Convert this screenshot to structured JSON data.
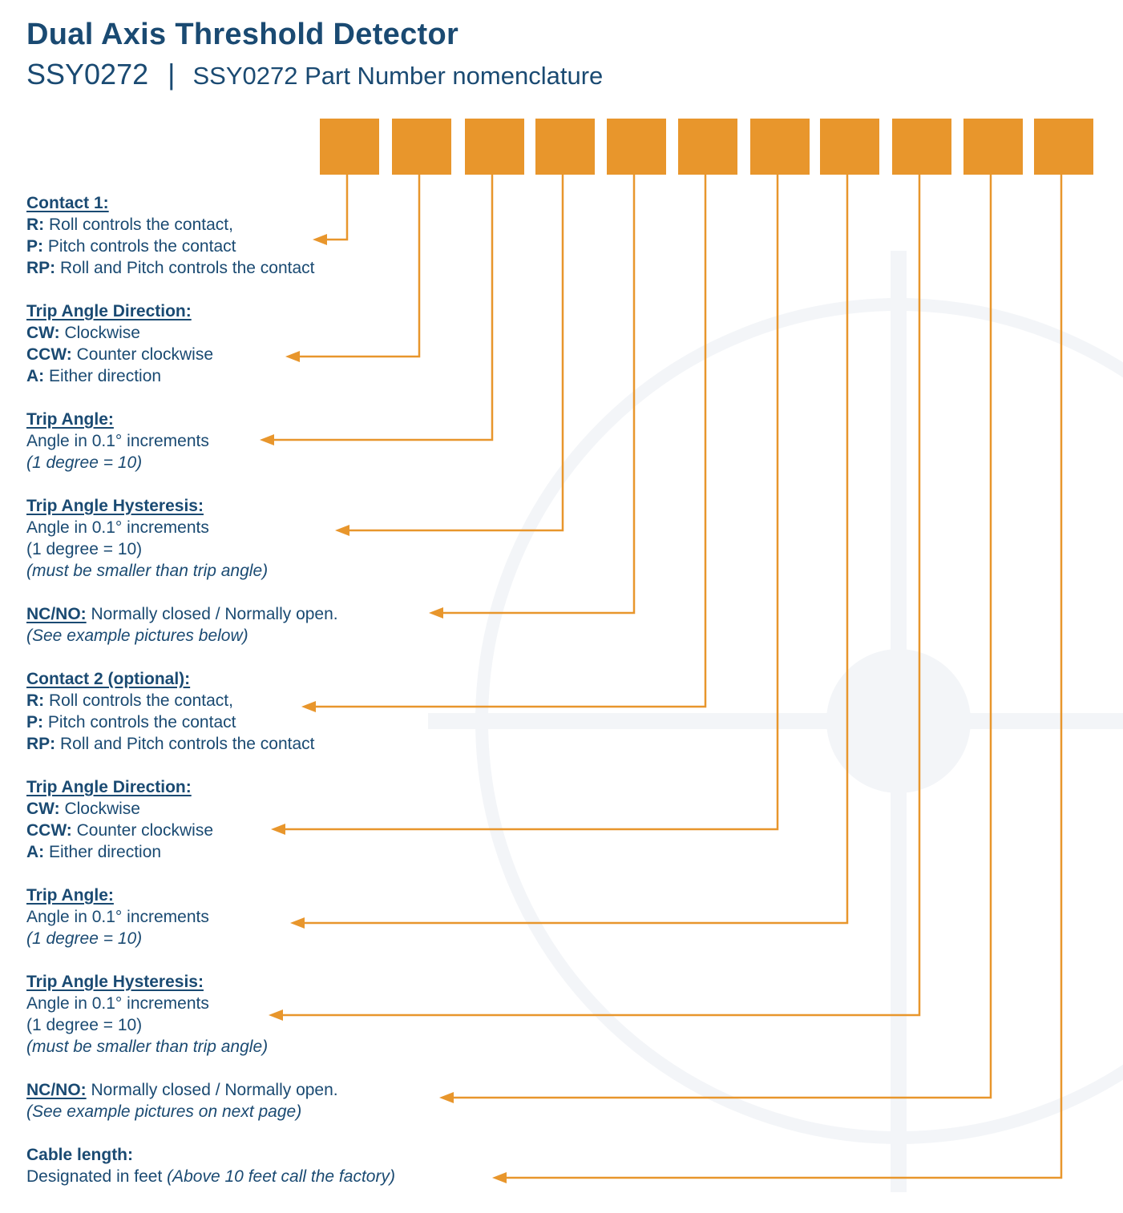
{
  "header": {
    "title": "Dual Axis Threshold Detector",
    "part_number": "SSY0272",
    "separator": "|",
    "subtitle": "SSY0272 Part Number nomenclature"
  },
  "colors": {
    "brand_blue": "#1a4a72",
    "accent_orange": "#e8962c",
    "watermark_gray": "#f3f5f8"
  },
  "fields": [
    {
      "heading": "Contact 1:",
      "lines": [
        {
          "key": "R:",
          "text": " Roll controls the contact,"
        },
        {
          "key": "P:",
          "text": " Pitch controls the contact"
        },
        {
          "key": "RP:",
          "text": " Roll and Pitch controls the contact"
        }
      ]
    },
    {
      "heading": "Trip Angle Direction:",
      "lines": [
        {
          "key": "CW:",
          "text": " Clockwise"
        },
        {
          "key": "CCW:",
          "text": " Counter clockwise"
        },
        {
          "key": "A:",
          "text": " Either direction"
        }
      ]
    },
    {
      "heading": "Trip Angle:",
      "lines": [
        {
          "text": "Angle in 0.1° increments"
        },
        {
          "text": "(1 degree = 10)",
          "italic": true
        }
      ]
    },
    {
      "heading": "Trip Angle Hysteresis:",
      "lines": [
        {
          "text": "Angle in 0.1° increments"
        },
        {
          "text": "(1 degree = 10)"
        },
        {
          "text": "(must be smaller than trip angle)",
          "italic": true
        }
      ]
    },
    {
      "heading": "NC/NO:",
      "heading_text": " Normally closed / Normally open.",
      "lines": [
        {
          "text": "(See example pictures below)",
          "italic": true
        }
      ]
    },
    {
      "heading": "Contact 2 (optional):",
      "lines": [
        {
          "key": "R:",
          "text": " Roll controls the contact,"
        },
        {
          "key": "P:",
          "text": " Pitch controls the contact"
        },
        {
          "key": "RP:",
          "text": " Roll and Pitch controls the contact"
        }
      ]
    },
    {
      "heading": "Trip Angle Direction:",
      "lines": [
        {
          "key": "CW:",
          "text": " Clockwise"
        },
        {
          "key": "CCW:",
          "text": " Counter clockwise"
        },
        {
          "key": "A:",
          "text": " Either direction"
        }
      ]
    },
    {
      "heading": "Trip Angle:",
      "lines": [
        {
          "text": "Angle in 0.1° increments"
        },
        {
          "text": "(1 degree = 10)",
          "italic": true
        }
      ]
    },
    {
      "heading": "Trip Angle Hysteresis:",
      "lines": [
        {
          "text": "Angle in 0.1° increments"
        },
        {
          "text": "(1 degree = 10)"
        },
        {
          "text": "(must be smaller than trip angle)",
          "italic": true
        }
      ]
    },
    {
      "heading": "NC/NO:",
      "heading_text": " Normally closed / Normally open.",
      "lines": [
        {
          "text": "(See example pictures on next page)",
          "italic": true
        }
      ]
    },
    {
      "heading": "Cable length:",
      "heading_plain": true,
      "lines": [
        {
          "text": "Designated in feet ",
          "italic_tail": "(Above 10 feet call the factory)"
        }
      ]
    }
  ]
}
